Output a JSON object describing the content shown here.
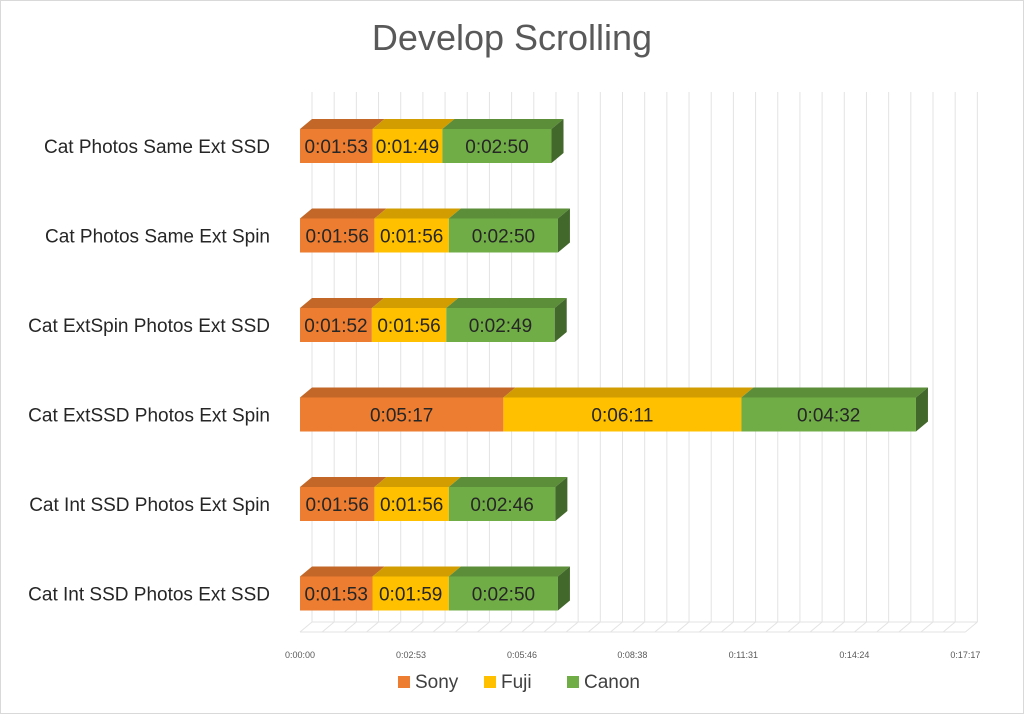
{
  "chart_data": {
    "type": "bar",
    "orientation": "horizontal",
    "stacked": true,
    "style": "3d",
    "title": "Develop Scrolling",
    "categories": [
      "Cat Photos Same Ext SSD",
      "Cat Photos Same Ext Spin",
      "Cat ExtSpin Photos Ext SSD",
      "Cat ExtSSD Photos Ext Spin",
      "Cat Int SSD Photos Ext Spin",
      "Cat Int SSD Photos Ext SSD"
    ],
    "series": [
      {
        "name": "Sony",
        "color": "#ED7D31",
        "values": [
          "0:01:53",
          "0:01:56",
          "0:01:52",
          "0:05:17",
          "0:01:56",
          "0:01:53"
        ]
      },
      {
        "name": "Fuji",
        "color": "#FFC000",
        "values": [
          "0:01:49",
          "0:01:56",
          "0:01:56",
          "0:06:11",
          "0:01:56",
          "0:01:59"
        ]
      },
      {
        "name": "Canon",
        "color": "#70AD47",
        "values": [
          "0:02:50",
          "0:02:50",
          "0:02:49",
          "0:04:32",
          "0:02:46",
          "0:02:50"
        ]
      }
    ],
    "x_ticks": [
      "0:00:00",
      "0:02:53",
      "0:05:46",
      "0:08:38",
      "0:11:31",
      "0:14:24",
      "0:17:17"
    ],
    "xlim": [
      "0:00:00",
      "0:17:17"
    ],
    "grid": true,
    "legend": "bottom"
  }
}
